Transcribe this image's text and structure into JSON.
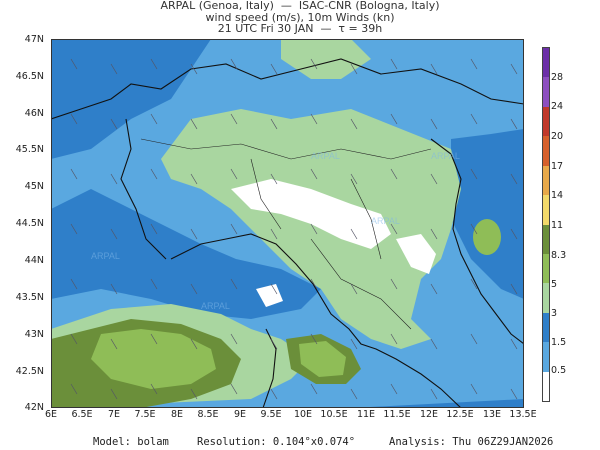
{
  "header": {
    "line1": "ARPAL (Genoa, Italy)  —  ISAC-CNR (Bologna, Italy)",
    "line2": "wind speed (m/s), 10m Winds (kn)",
    "line3": "21 UTC Fri 30 JAN  —  τ = 39h"
  },
  "axes": {
    "lat_labels": [
      "47N",
      "46.5N",
      "46N",
      "45.5N",
      "45N",
      "44.5N",
      "44N",
      "43.5N",
      "43N",
      "42.5N",
      "42N"
    ],
    "lon_labels": [
      "6E",
      "6.5E",
      "7E",
      "7.5E",
      "8E",
      "8.5E",
      "9E",
      "9.5E",
      "10E",
      "10.5E",
      "11E",
      "11.5E",
      "12E",
      "12.5E",
      "13E",
      "13.5E"
    ]
  },
  "colorbar": {
    "labels": [
      "28",
      "24",
      "20",
      "17",
      "14",
      "11",
      "8.3",
      "5",
      "3",
      "1.5",
      "0.5"
    ],
    "colors": [
      "#6c2fa8",
      "#8d4fc0",
      "#c0392b",
      "#d5602c",
      "#e8a94a",
      "#f2d96a",
      "#6b8f3a",
      "#8fbd57",
      "#a9d6a0",
      "#2f7fc9",
      "#5aa8e0",
      "#ffffff"
    ]
  },
  "watermark": "ARPAL",
  "footer": {
    "model": "Model: bolam",
    "resolution": "Resolution: 0.104°x0.074°",
    "analysis": "Analysis: Thu 06Z29JAN2026"
  }
}
